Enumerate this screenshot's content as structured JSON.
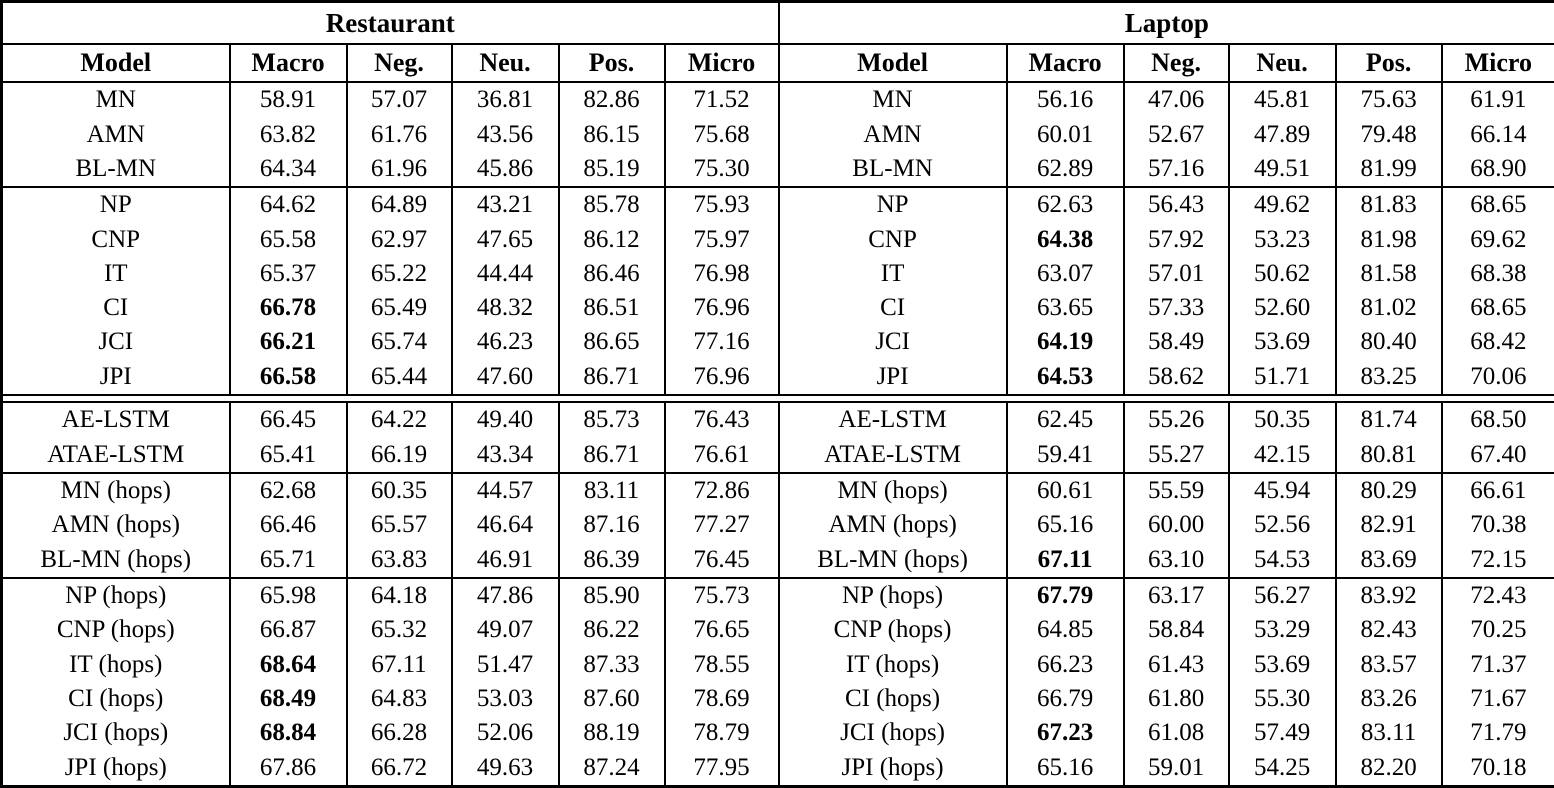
{
  "table": {
    "column_headers": [
      "Model",
      "Macro",
      "Neg.",
      "Neu.",
      "Pos.",
      "Micro"
    ],
    "halves": [
      {
        "title": "Restaurant",
        "groups": [
          {
            "rule_above": "none",
            "rows": [
              {
                "model": "MN",
                "values": [
                  "58.91",
                  "57.07",
                  "36.81",
                  "82.86",
                  "71.52"
                ],
                "bold": []
              },
              {
                "model": "AMN",
                "values": [
                  "63.82",
                  "61.76",
                  "43.56",
                  "86.15",
                  "75.68"
                ],
                "bold": []
              },
              {
                "model": "BL-MN",
                "values": [
                  "64.34",
                  "61.96",
                  "45.86",
                  "85.19",
                  "75.30"
                ],
                "bold": []
              }
            ]
          },
          {
            "rule_above": "single",
            "rows": [
              {
                "model": "NP",
                "values": [
                  "64.62",
                  "64.89",
                  "43.21",
                  "85.78",
                  "75.93"
                ],
                "bold": []
              },
              {
                "model": "CNP",
                "values": [
                  "65.58",
                  "62.97",
                  "47.65",
                  "86.12",
                  "75.97"
                ],
                "bold": []
              },
              {
                "model": "IT",
                "values": [
                  "65.37",
                  "65.22",
                  "44.44",
                  "86.46",
                  "76.98"
                ],
                "bold": []
              },
              {
                "model": "CI",
                "values": [
                  "66.78",
                  "65.49",
                  "48.32",
                  "86.51",
                  "76.96"
                ],
                "bold": [
                  0
                ]
              },
              {
                "model": "JCI",
                "values": [
                  "66.21",
                  "65.74",
                  "46.23",
                  "86.65",
                  "77.16"
                ],
                "bold": [
                  0
                ]
              },
              {
                "model": "JPI",
                "values": [
                  "66.58",
                  "65.44",
                  "47.60",
                  "86.71",
                  "76.96"
                ],
                "bold": [
                  0
                ]
              }
            ]
          },
          {
            "rule_above": "double",
            "rows": [
              {
                "model": "AE-LSTM",
                "values": [
                  "66.45",
                  "64.22",
                  "49.40",
                  "85.73",
                  "76.43"
                ],
                "bold": []
              },
              {
                "model": "ATAE-LSTM",
                "values": [
                  "65.41",
                  "66.19",
                  "43.34",
                  "86.71",
                  "76.61"
                ],
                "bold": []
              }
            ]
          },
          {
            "rule_above": "single",
            "rows": [
              {
                "model": "MN (hops)",
                "values": [
                  "62.68",
                  "60.35",
                  "44.57",
                  "83.11",
                  "72.86"
                ],
                "bold": []
              },
              {
                "model": "AMN (hops)",
                "values": [
                  "66.46",
                  "65.57",
                  "46.64",
                  "87.16",
                  "77.27"
                ],
                "bold": []
              },
              {
                "model": "BL-MN (hops)",
                "values": [
                  "65.71",
                  "63.83",
                  "46.91",
                  "86.39",
                  "76.45"
                ],
                "bold": []
              }
            ]
          },
          {
            "rule_above": "single",
            "rows": [
              {
                "model": "NP (hops)",
                "values": [
                  "65.98",
                  "64.18",
                  "47.86",
                  "85.90",
                  "75.73"
                ],
                "bold": []
              },
              {
                "model": "CNP (hops)",
                "values": [
                  "66.87",
                  "65.32",
                  "49.07",
                  "86.22",
                  "76.65"
                ],
                "bold": []
              },
              {
                "model": "IT (hops)",
                "values": [
                  "68.64",
                  "67.11",
                  "51.47",
                  "87.33",
                  "78.55"
                ],
                "bold": [
                  0
                ]
              },
              {
                "model": "CI (hops)",
                "values": [
                  "68.49",
                  "64.83",
                  "53.03",
                  "87.60",
                  "78.69"
                ],
                "bold": [
                  0
                ]
              },
              {
                "model": "JCI (hops)",
                "values": [
                  "68.84",
                  "66.28",
                  "52.06",
                  "88.19",
                  "78.79"
                ],
                "bold": [
                  0
                ]
              },
              {
                "model": "JPI (hops)",
                "values": [
                  "67.86",
                  "66.72",
                  "49.63",
                  "87.24",
                  "77.95"
                ],
                "bold": []
              }
            ]
          }
        ]
      },
      {
        "title": "Laptop",
        "groups": [
          {
            "rule_above": "none",
            "rows": [
              {
                "model": "MN",
                "values": [
                  "56.16",
                  "47.06",
                  "45.81",
                  "75.63",
                  "61.91"
                ],
                "bold": []
              },
              {
                "model": "AMN",
                "values": [
                  "60.01",
                  "52.67",
                  "47.89",
                  "79.48",
                  "66.14"
                ],
                "bold": []
              },
              {
                "model": "BL-MN",
                "values": [
                  "62.89",
                  "57.16",
                  "49.51",
                  "81.99",
                  "68.90"
                ],
                "bold": []
              }
            ]
          },
          {
            "rule_above": "single",
            "rows": [
              {
                "model": "NP",
                "values": [
                  "62.63",
                  "56.43",
                  "49.62",
                  "81.83",
                  "68.65"
                ],
                "bold": []
              },
              {
                "model": "CNP",
                "values": [
                  "64.38",
                  "57.92",
                  "53.23",
                  "81.98",
                  "69.62"
                ],
                "bold": [
                  0
                ]
              },
              {
                "model": "IT",
                "values": [
                  "63.07",
                  "57.01",
                  "50.62",
                  "81.58",
                  "68.38"
                ],
                "bold": []
              },
              {
                "model": "CI",
                "values": [
                  "63.65",
                  "57.33",
                  "52.60",
                  "81.02",
                  "68.65"
                ],
                "bold": []
              },
              {
                "model": "JCI",
                "values": [
                  "64.19",
                  "58.49",
                  "53.69",
                  "80.40",
                  "68.42"
                ],
                "bold": [
                  0
                ]
              },
              {
                "model": "JPI",
                "values": [
                  "64.53",
                  "58.62",
                  "51.71",
                  "83.25",
                  "70.06"
                ],
                "bold": [
                  0
                ]
              }
            ]
          },
          {
            "rule_above": "double",
            "rows": [
              {
                "model": "AE-LSTM",
                "values": [
                  "62.45",
                  "55.26",
                  "50.35",
                  "81.74",
                  "68.50"
                ],
                "bold": []
              },
              {
                "model": "ATAE-LSTM",
                "values": [
                  "59.41",
                  "55.27",
                  "42.15",
                  "80.81",
                  "67.40"
                ],
                "bold": []
              }
            ]
          },
          {
            "rule_above": "single",
            "rows": [
              {
                "model": "MN (hops)",
                "values": [
                  "60.61",
                  "55.59",
                  "45.94",
                  "80.29",
                  "66.61"
                ],
                "bold": []
              },
              {
                "model": "AMN (hops)",
                "values": [
                  "65.16",
                  "60.00",
                  "52.56",
                  "82.91",
                  "70.38"
                ],
                "bold": []
              },
              {
                "model": "BL-MN (hops)",
                "values": [
                  "67.11",
                  "63.10",
                  "54.53",
                  "83.69",
                  "72.15"
                ],
                "bold": [
                  0
                ]
              }
            ]
          },
          {
            "rule_above": "single",
            "rows": [
              {
                "model": "NP (hops)",
                "values": [
                  "67.79",
                  "63.17",
                  "56.27",
                  "83.92",
                  "72.43"
                ],
                "bold": [
                  0
                ]
              },
              {
                "model": "CNP (hops)",
                "values": [
                  "64.85",
                  "58.84",
                  "53.29",
                  "82.43",
                  "70.25"
                ],
                "bold": []
              },
              {
                "model": "IT (hops)",
                "values": [
                  "66.23",
                  "61.43",
                  "53.69",
                  "83.57",
                  "71.37"
                ],
                "bold": []
              },
              {
                "model": "CI (hops)",
                "values": [
                  "66.79",
                  "61.80",
                  "55.30",
                  "83.26",
                  "71.67"
                ],
                "bold": []
              },
              {
                "model": "JCI (hops)",
                "values": [
                  "67.23",
                  "61.08",
                  "57.49",
                  "83.11",
                  "71.79"
                ],
                "bold": [
                  0
                ]
              },
              {
                "model": "JPI (hops)",
                "values": [
                  "65.16",
                  "59.01",
                  "54.25",
                  "82.20",
                  "70.18"
                ],
                "bold": []
              }
            ]
          }
        ]
      }
    ],
    "style": {
      "text_color": "#000000",
      "rule_color": "#000000",
      "background_color": "#ffffff"
    }
  }
}
